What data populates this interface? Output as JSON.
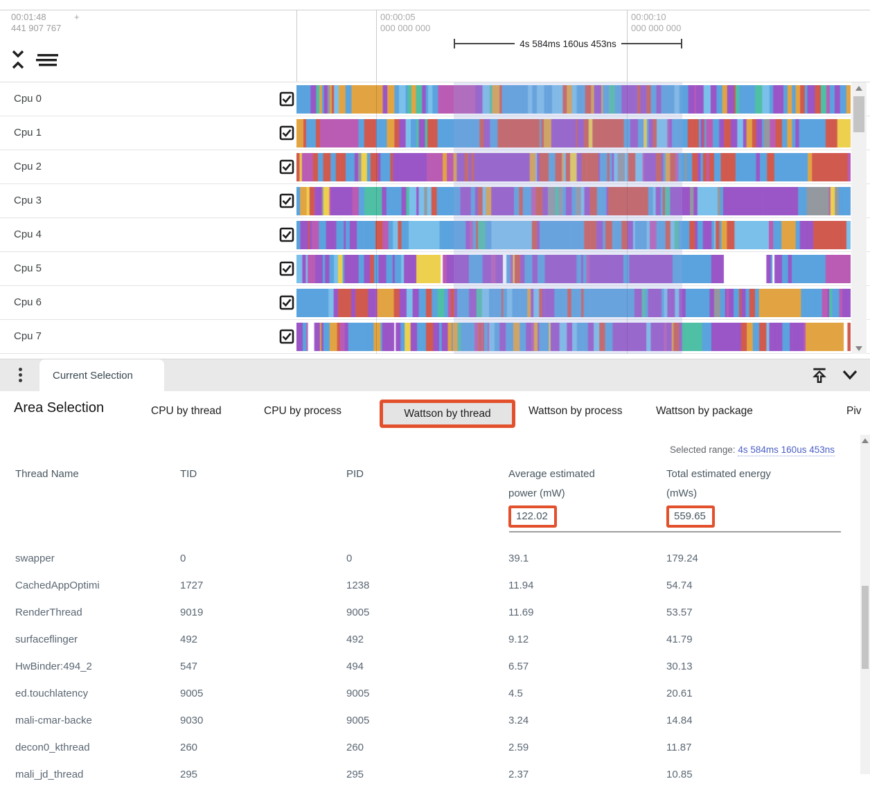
{
  "timeline": {
    "cursor": {
      "time": "00:01:48",
      "plus": "+",
      "nanos": "441 907 767"
    },
    "ruler_marks": [
      {
        "time": "00:00:05",
        "nanos": "000 000 000"
      },
      {
        "time": "00:00:10",
        "nanos": "000 000 000"
      }
    ],
    "measurement_label": "4s 584ms 160us 453ns",
    "tracks": [
      {
        "label": "Cpu 0",
        "checked": true
      },
      {
        "label": "Cpu 1",
        "checked": true
      },
      {
        "label": "Cpu 2",
        "checked": true
      },
      {
        "label": "Cpu 3",
        "checked": true
      },
      {
        "label": "Cpu 4",
        "checked": true
      },
      {
        "label": "Cpu 5",
        "checked": true
      },
      {
        "label": "Cpu 6",
        "checked": true
      },
      {
        "label": "Cpu 7",
        "checked": true
      }
    ],
    "palette": [
      "#5aa3de",
      "#7bc0ea",
      "#9a55c7",
      "#bb5cb4",
      "#d15a4f",
      "#e2a442",
      "#4fbfa5",
      "#ecd04e",
      "#93999f",
      "#ffffff"
    ],
    "track_weights": [
      [
        38,
        10,
        14,
        4,
        12,
        12,
        6,
        2,
        2,
        0
      ],
      [
        30,
        8,
        18,
        5,
        28,
        5,
        3,
        1,
        2,
        0
      ],
      [
        28,
        6,
        18,
        5,
        32,
        5,
        3,
        1,
        2,
        0
      ],
      [
        34,
        8,
        22,
        4,
        8,
        4,
        4,
        1,
        15,
        0
      ],
      [
        40,
        14,
        20,
        4,
        10,
        5,
        5,
        1,
        1,
        0
      ],
      [
        30,
        8,
        34,
        6,
        6,
        3,
        3,
        4,
        1,
        5
      ],
      [
        36,
        10,
        26,
        5,
        12,
        4,
        5,
        1,
        1,
        0
      ],
      [
        26,
        6,
        36,
        6,
        14,
        6,
        2,
        2,
        1,
        4
      ]
    ]
  },
  "selection_bar": {
    "tab_label": "Current Selection"
  },
  "panel": {
    "title": "Area Selection",
    "tabs": [
      {
        "label": "CPU by thread",
        "selected": false,
        "annotated": false
      },
      {
        "label": "CPU by process",
        "selected": false,
        "annotated": false
      },
      {
        "label": "Wattson by thread",
        "selected": true,
        "annotated": true
      },
      {
        "label": "Wattson by process",
        "selected": false,
        "annotated": false
      },
      {
        "label": "Wattson by package",
        "selected": false,
        "annotated": false
      },
      {
        "label": "Piv",
        "selected": false,
        "annotated": false
      }
    ],
    "selected_range": {
      "label": "Selected range:",
      "value": "4s 584ms 160us 453ns"
    },
    "table": {
      "headers": {
        "thread": "Thread Name",
        "tid": "TID",
        "pid": "PID",
        "power_line1": "Average estimated",
        "power_line2": "power (mW)",
        "energy_line1": "Total estimated energy",
        "energy_line2": "(mWs)"
      },
      "totals": {
        "power": "122.02",
        "energy": "559.65"
      },
      "rows": [
        {
          "name": "swapper",
          "tid": "0",
          "pid": "0",
          "power": "39.1",
          "energy": "179.24"
        },
        {
          "name": "CachedAppOptimi",
          "tid": "1727",
          "pid": "1238",
          "power": "11.94",
          "energy": "54.74"
        },
        {
          "name": "RenderThread",
          "tid": "9019",
          "pid": "9005",
          "power": "11.69",
          "energy": "53.57"
        },
        {
          "name": "surfaceflinger",
          "tid": "492",
          "pid": "492",
          "power": "9.12",
          "energy": "41.79"
        },
        {
          "name": "HwBinder:494_2",
          "tid": "547",
          "pid": "494",
          "power": "6.57",
          "energy": "30.13"
        },
        {
          "name": "ed.touchlatency",
          "tid": "9005",
          "pid": "9005",
          "power": "4.5",
          "energy": "20.61"
        },
        {
          "name": "mali-cmar-backe",
          "tid": "9030",
          "pid": "9005",
          "power": "3.24",
          "energy": "14.84"
        },
        {
          "name": "decon0_kthread",
          "tid": "260",
          "pid": "260",
          "power": "2.59",
          "energy": "11.87"
        },
        {
          "name": "mali_jd_thread",
          "tid": "295",
          "pid": "295",
          "power": "2.37",
          "energy": "10.85"
        }
      ]
    }
  },
  "colors": {
    "annotation": "#e2502c",
    "link": "#4a5ec4",
    "header_text": "#47565f",
    "cell_text": "#5a6672",
    "ruler_text": "#9e9e9e"
  }
}
